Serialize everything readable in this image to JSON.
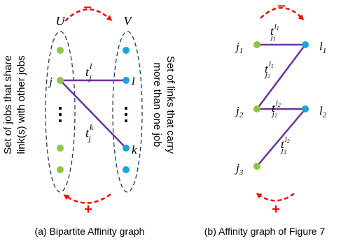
{
  "colors": {
    "job_node": "#8dc63f",
    "link_node": "#1aa3e0",
    "edge": "#7030a0",
    "set_ellipse": "#1f3864",
    "sign_arrow": "#ff0000",
    "text": "#000000"
  },
  "panel_a": {
    "set_u_label": "U",
    "set_v_label": "V",
    "job_label": "j",
    "link_label_l": "l",
    "link_label_k": "k",
    "edge_l_base": "t",
    "edge_l_sup": "l",
    "edge_l_sub": "j",
    "edge_k_base": "t",
    "edge_k_sup": "k",
    "edge_k_sub": "j",
    "ellipsis_u": "⋮",
    "ellipsis_v": "⋮",
    "left_caption_line1": "Set of jobs that share",
    "left_caption_line2": "link(s) with other jobs",
    "right_caption_line1": "Set of links that carry",
    "right_caption_line2": "more than one job",
    "top_sign": "–",
    "bottom_sign": "+",
    "caption": "(a) Bipartite Affinity graph"
  },
  "panel_b": {
    "job_1": {
      "base": "j",
      "sub": "1"
    },
    "job_2": {
      "base": "j",
      "sub": "2"
    },
    "job_3": {
      "base": "j",
      "sub": "3"
    },
    "link_1": {
      "base": "l",
      "sub": "1"
    },
    "link_2": {
      "base": "l",
      "sub": "2"
    },
    "edge_1": {
      "base": "t",
      "sup": "l",
      "sup_sub": "1",
      "sub": "j",
      "sub_sub": "1"
    },
    "edge_2": {
      "base": "t",
      "sup": "l",
      "sup_sub": "1",
      "sub": "j",
      "sub_sub": "2"
    },
    "edge_3": {
      "base": "t",
      "sup": "l",
      "sup_sub": "2",
      "sub": "j",
      "sub_sub": "2"
    },
    "edge_4": {
      "base": "t",
      "sup": "l",
      "sup_sub": "2",
      "sub": "j",
      "sub_sub": "3"
    },
    "top_sign": "–",
    "bottom_sign": "+",
    "caption": "(b) Affinity graph of Figure 7"
  }
}
